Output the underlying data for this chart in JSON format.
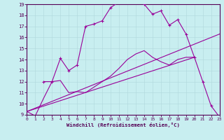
{
  "xlabel": "Windchill (Refroidissement éolien,°C)",
  "bg_color": "#c8eef0",
  "line_color": "#990099",
  "xlim": [
    0,
    23
  ],
  "ylim": [
    9,
    19
  ],
  "xticks": [
    0,
    1,
    2,
    3,
    4,
    5,
    6,
    7,
    8,
    9,
    10,
    11,
    12,
    13,
    14,
    15,
    16,
    17,
    18,
    19,
    20,
    21,
    22,
    23
  ],
  "yticks": [
    9,
    10,
    11,
    12,
    13,
    14,
    15,
    16,
    17,
    18,
    19
  ],
  "line1_x": [
    0,
    1,
    2,
    3,
    4,
    5,
    6,
    7,
    8,
    9,
    10,
    11,
    12,
    13,
    14,
    15,
    16,
    17,
    18,
    19,
    20
  ],
  "line1_y": [
    9.3,
    8.9,
    10.5,
    12.0,
    12.1,
    11.0,
    11.1,
    11.0,
    11.5,
    12.0,
    12.5,
    13.2,
    14.0,
    14.5,
    14.8,
    14.2,
    13.8,
    13.5,
    14.0,
    14.2,
    14.2
  ],
  "line2_x": [
    2,
    3,
    4,
    5,
    6,
    7,
    8,
    9,
    10,
    11,
    12,
    13,
    14,
    15,
    16,
    17,
    18,
    19,
    20,
    21,
    22,
    23
  ],
  "line2_y": [
    12.0,
    12.0,
    14.1,
    13.0,
    13.5,
    17.0,
    17.2,
    17.5,
    18.7,
    19.2,
    19.35,
    19.3,
    19.0,
    18.1,
    18.4,
    17.1,
    17.6,
    16.3,
    14.2,
    12.0,
    9.8,
    8.8
  ],
  "line3_x": [
    0,
    23
  ],
  "line3_y": [
    9.3,
    16.3
  ],
  "line4_x": [
    0,
    20
  ],
  "line4_y": [
    9.3,
    14.2
  ]
}
